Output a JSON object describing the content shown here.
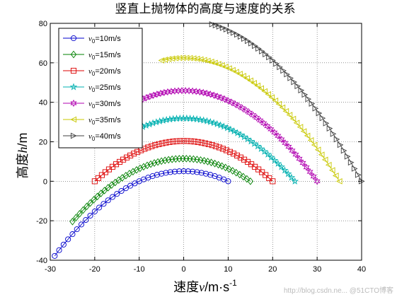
{
  "chart_data": {
    "type": "scatter",
    "title": "竖直上抛物体的高度与速度的关系",
    "xlabel": {
      "prefix": "速度",
      "var": "v",
      "unit": "/m·s",
      "exp": "-1"
    },
    "ylabel": {
      "prefix": "高度",
      "var": "h",
      "unit": "/m"
    },
    "xlim": [
      -30,
      40
    ],
    "ylim": [
      -40,
      80
    ],
    "xticks": [
      "-30",
      "-20",
      "-10",
      "0",
      "10",
      "20",
      "30",
      "40"
    ],
    "yticks": [
      "-40",
      "-20",
      "0",
      "20",
      "40",
      "60",
      "80"
    ],
    "grid": true,
    "legend": "top-left",
    "g": 9.8,
    "series": [
      {
        "label": "=10m/s",
        "v0": 10,
        "v_start": 10,
        "v_end": -40,
        "color": "#0000cc",
        "marker": "circle"
      },
      {
        "label": "=15m/s",
        "v0": 15,
        "v_start": 15,
        "v_end": -25,
        "color": "#008000",
        "marker": "diamond"
      },
      {
        "label": "=20m/s",
        "v0": 20,
        "v_start": 20,
        "v_end": -20,
        "color": "#dd0000",
        "marker": "square"
      },
      {
        "label": "=25m/s",
        "v0": 25,
        "v_start": 25,
        "v_end": -13,
        "color": "#00b0b0",
        "marker": "star"
      },
      {
        "label": "=30m/s",
        "v0": 30,
        "v_start": 30,
        "v_end": -10,
        "color": "#b000b0",
        "marker": "hexagram"
      },
      {
        "label": "=35m/s",
        "v0": 35,
        "v_start": 35,
        "v_end": -5,
        "color": "#c8c800",
        "marker": "triangle-left"
      },
      {
        "label": "=40m/s",
        "v0": 40,
        "v_start": 40,
        "v_end": 0,
        "color": "#404040",
        "marker": "triangle-right"
      }
    ],
    "legend_var": "v",
    "legend_sub": "0"
  },
  "watermark": "http://blog.csdn.ne...  @51CTO博客"
}
